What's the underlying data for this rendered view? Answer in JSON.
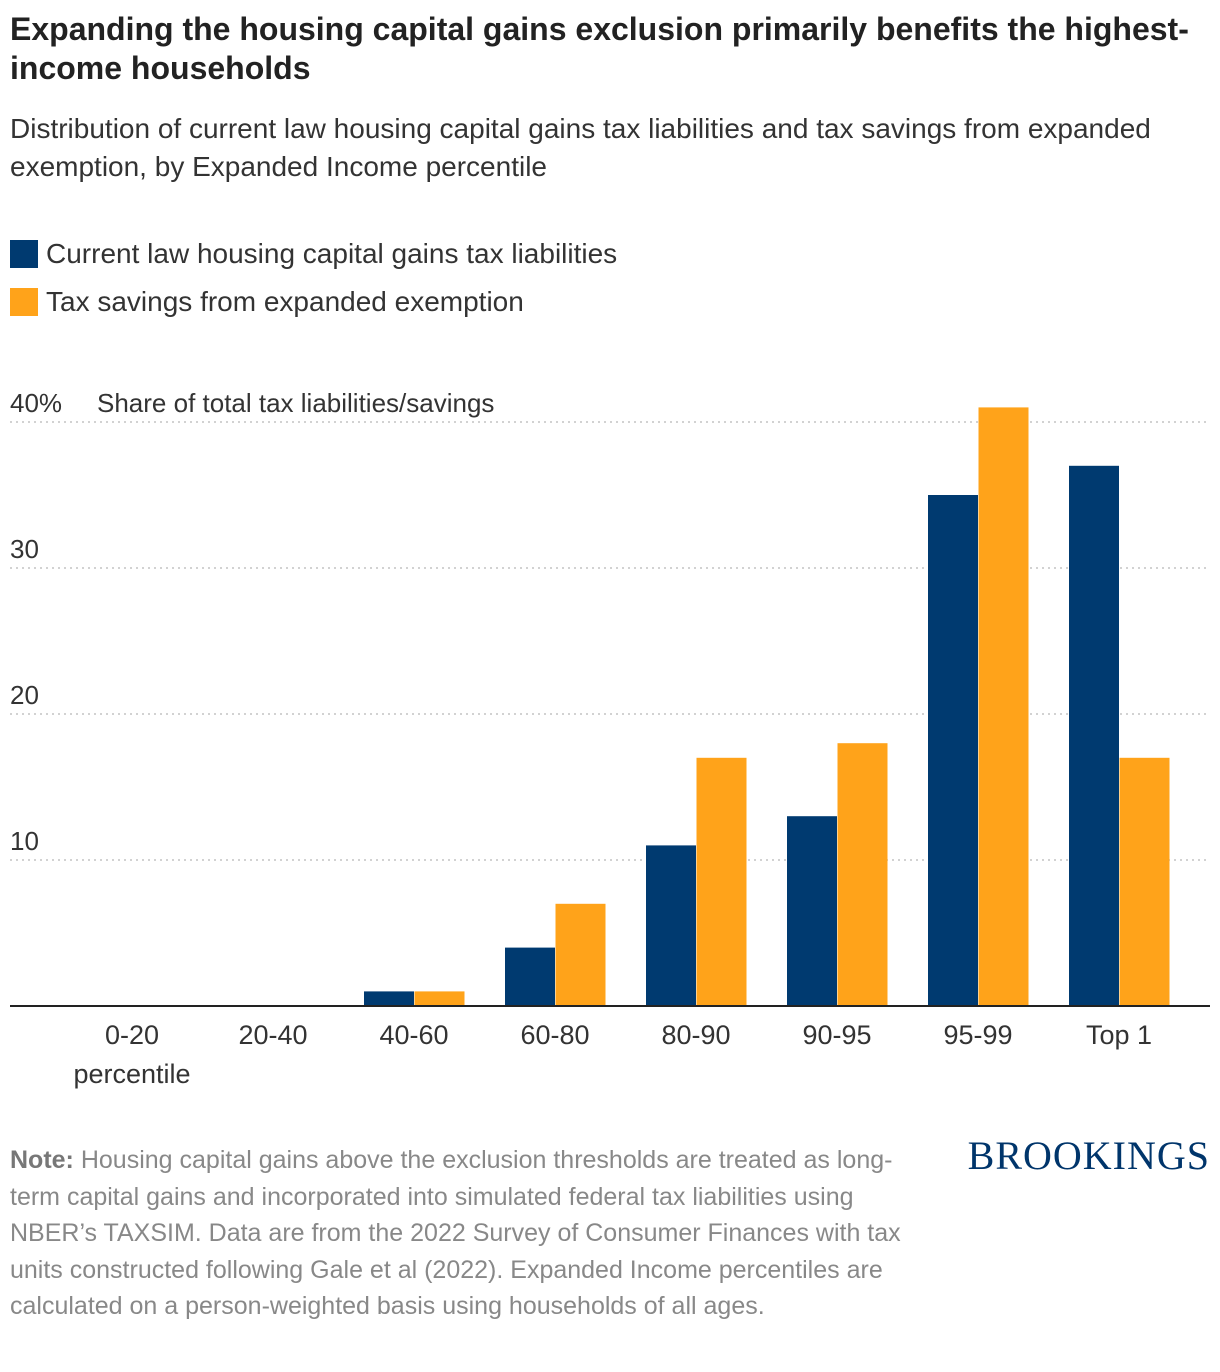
{
  "header": {
    "title": "Expanding the housing capital gains exclusion primarily benefits the highest-income households",
    "subtitle": "Distribution of current law housing capital gains tax liabilities and tax savings from expanded exemption, by Expanded Income percentile"
  },
  "legend": {
    "items": [
      {
        "label": "Current law housing capital gains tax liabilities",
        "color": "#003a70"
      },
      {
        "label": "Tax savings from expanded exemption",
        "color": "#ffa31a"
      }
    ]
  },
  "chart_data": {
    "type": "bar",
    "title": "Expanding the housing capital gains exclusion primarily benefits the highest-income households",
    "subtitle": "Distribution of current law housing capital gains tax liabilities and tax savings from expanded exemption, by Expanded Income percentile",
    "ylabel": "Share of total tax liabilities/savings",
    "ylim": [
      0,
      40
    ],
    "yticks": [
      {
        "value": 10,
        "label": "10"
      },
      {
        "value": 20,
        "label": "20"
      },
      {
        "value": 30,
        "label": "30"
      },
      {
        "value": 40,
        "label": "40%"
      }
    ],
    "categories": [
      "0-20 percentile",
      "20-40",
      "40-60",
      "60-80",
      "80-90",
      "90-95",
      "95-99",
      "Top 1"
    ],
    "category_labels": [
      [
        "0-20",
        "percentile"
      ],
      [
        "20-40"
      ],
      [
        "40-60"
      ],
      [
        "60-80"
      ],
      [
        "80-90"
      ],
      [
        "90-95"
      ],
      [
        "95-99"
      ],
      [
        "Top 1"
      ]
    ],
    "series": [
      {
        "name": "Current law housing capital gains tax liabilities",
        "color": "#003a70",
        "values": [
          0,
          0,
          1,
          4,
          11,
          13,
          35,
          37
        ]
      },
      {
        "name": "Tax savings from expanded exemption",
        "color": "#ffa31a",
        "values": [
          0,
          0,
          1,
          7,
          17,
          18,
          41,
          17
        ]
      }
    ],
    "grid": true,
    "legend": "top-left"
  },
  "note": {
    "label": "Note:",
    "text": " Housing capital gains above the exclusion thresholds are treated as long-term capital gains and incorporated into simulated federal tax liabilities using NBER’s TAXSIM. Data are from the 2022 Survey of Consumer Finances with tax units constructed following Gale et al (2022). Expanded Income percentiles are calculated on a person-weighted basis using households of all ages."
  },
  "branding": {
    "logo_text": "BROOKINGS"
  }
}
